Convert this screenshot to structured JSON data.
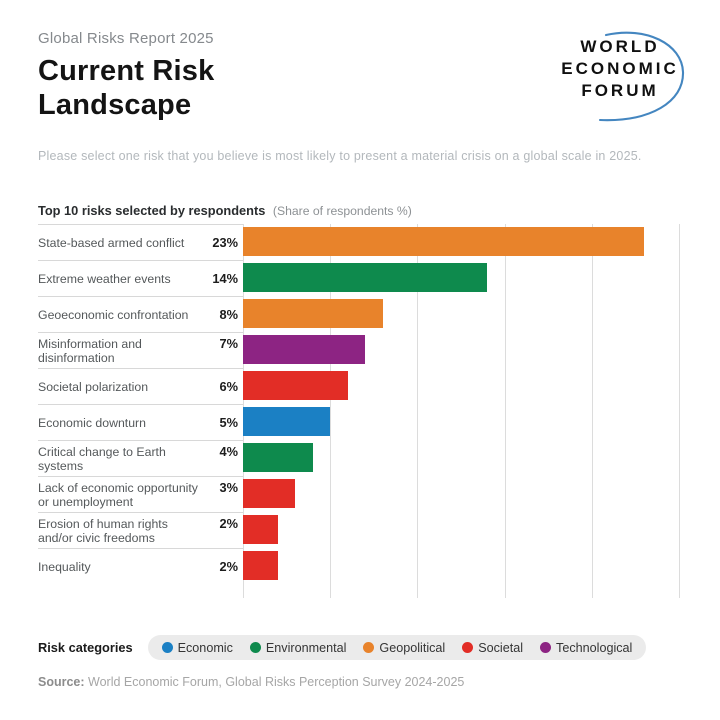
{
  "header": {
    "eyebrow": "Global Risks Report 2025",
    "title": "Current Risk Landscape",
    "logo": {
      "lines": [
        "WORLD",
        "ECONOMIC",
        "FORUM"
      ],
      "arc_color": "#4486c0"
    }
  },
  "intro": "Please select one risk that you believe is most likely to present a material crisis on a global scale in 2025.",
  "chart_heading": {
    "bold": "Top 10 risks selected by respondents",
    "note": "(Share of respondents %)"
  },
  "chart_data": {
    "type": "bar",
    "orientation": "horizontal",
    "title": "Top 10 risks selected by respondents",
    "unit": "Share of respondents %",
    "xlim": [
      0,
      25
    ],
    "gridlines_pct": [
      0,
      5,
      10,
      15,
      20,
      25
    ],
    "grid": true,
    "categories": [
      "State-based armed conflict",
      "Extreme weather events",
      "Geoeconomic confrontation",
      "Misinformation and disinformation",
      "Societal polarization",
      "Economic downturn",
      "Critical change to Earth systems",
      "Lack of economic opportunity or unemployment",
      "Erosion of human rights and/or civic freedoms",
      "Inequality"
    ],
    "values": [
      23,
      14,
      8,
      7,
      6,
      5,
      4,
      3,
      2,
      2
    ],
    "value_labels": [
      "23%",
      "14%",
      "8%",
      "7%",
      "6%",
      "5%",
      "4%",
      "3%",
      "2%",
      "2%"
    ],
    "bar_categories": [
      "Geopolitical",
      "Environmental",
      "Geopolitical",
      "Technological",
      "Societal",
      "Economic",
      "Environmental",
      "Societal",
      "Societal",
      "Societal"
    ],
    "category_colors": {
      "Economic": "#1b80c4",
      "Environmental": "#0e8a4d",
      "Geopolitical": "#e8832b",
      "Societal": "#e22d26",
      "Technological": "#8d2483"
    }
  },
  "legend": {
    "label": "Risk categories",
    "items": [
      {
        "name": "Economic",
        "color": "#1b80c4"
      },
      {
        "name": "Environmental",
        "color": "#0e8a4d"
      },
      {
        "name": "Geopolitical",
        "color": "#e8832b"
      },
      {
        "name": "Societal",
        "color": "#e22d26"
      },
      {
        "name": "Technological",
        "color": "#8d2483"
      }
    ]
  },
  "source": {
    "label": "Source:",
    "text": "World Economic Forum, Global Risks Perception Survey 2024-2025"
  }
}
